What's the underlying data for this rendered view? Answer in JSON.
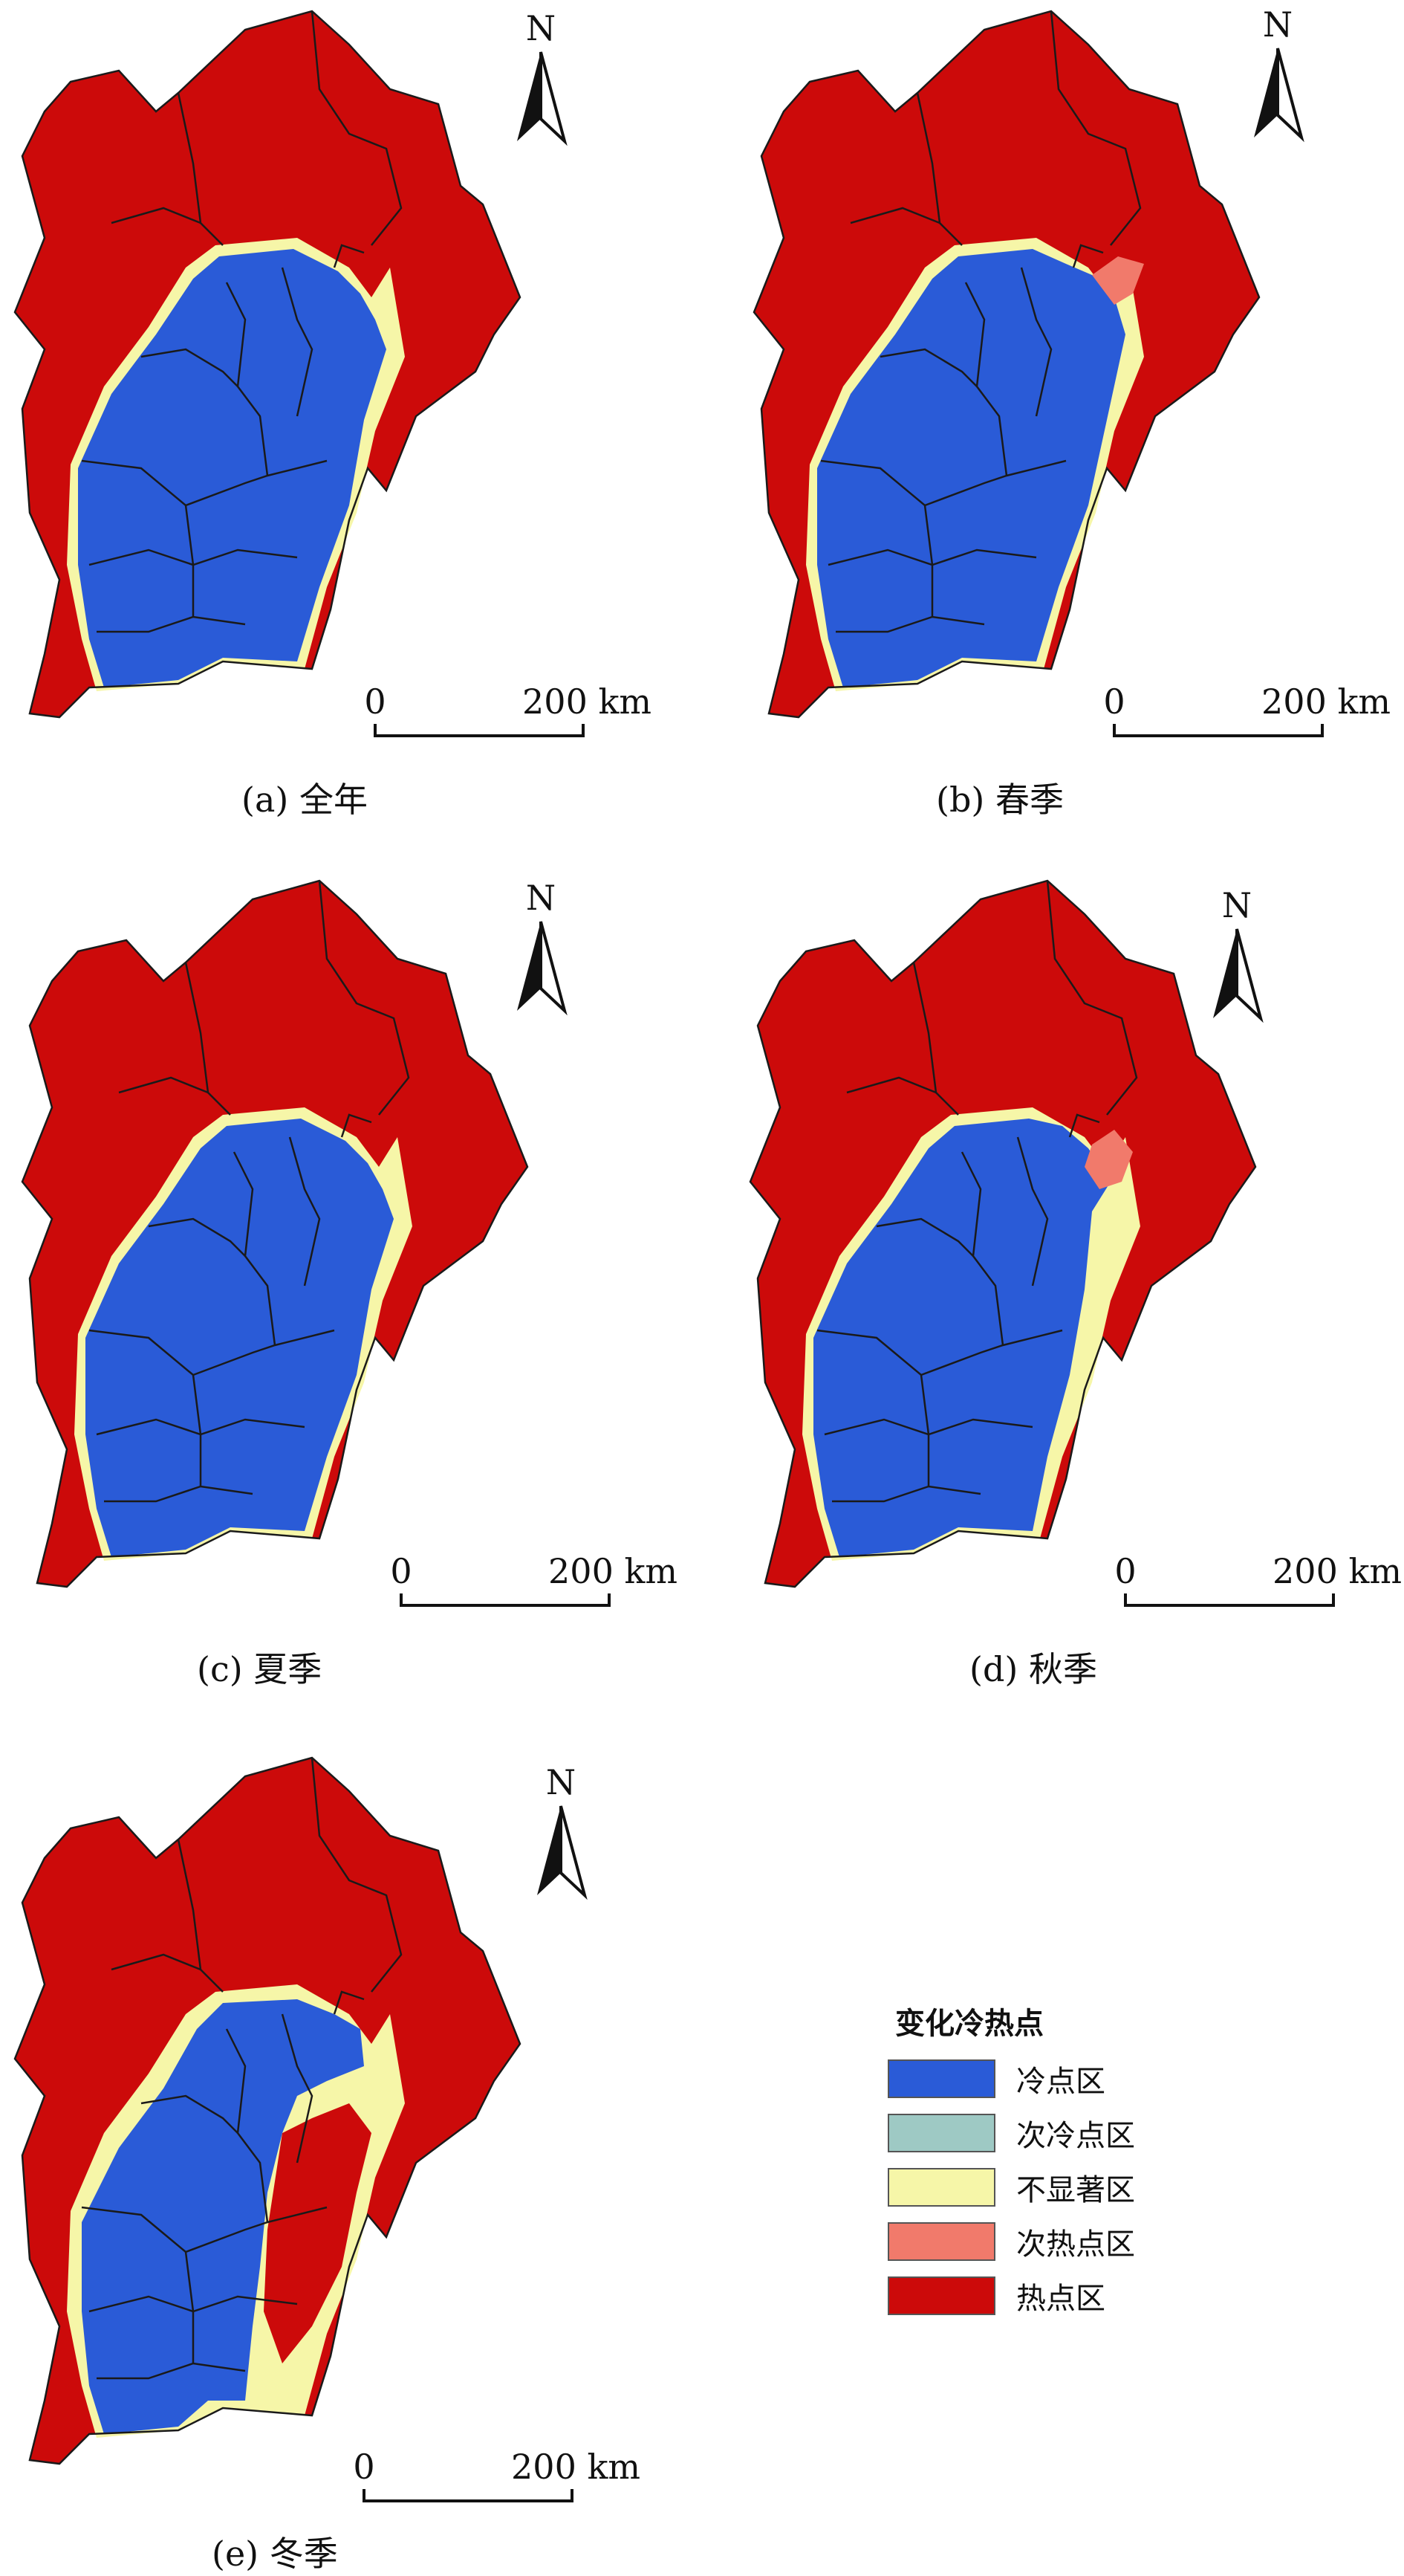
{
  "legend": {
    "title": "变化冷热点",
    "items": [
      {
        "label": "冷点区",
        "color": "#2a5bd7"
      },
      {
        "label": "次冷点区",
        "color": "#9ec9c4"
      },
      {
        "label": "不显著区",
        "color": "#f6f6a8"
      },
      {
        "label": "次热点区",
        "color": "#f17a6b"
      },
      {
        "label": "热点区",
        "color": "#cc0a0a"
      }
    ]
  },
  "colors": {
    "hot": "#cc0a0a",
    "warm": "#f17a6b",
    "insig": "#f6f6a8",
    "cool": "#9ec9c4",
    "cold": "#2a5bd7",
    "boundary": "#1a1a1a"
  },
  "north_arrow": {
    "label": "N"
  },
  "scale_bar": {
    "start": "0",
    "end": "200 km"
  },
  "panels": [
    {
      "caption": "(a) 全年"
    },
    {
      "caption": "(b) 春季"
    },
    {
      "caption": "(c) 夏季"
    },
    {
      "caption": "(d) 秋季"
    },
    {
      "caption": "(e) 冬季"
    }
  ]
}
